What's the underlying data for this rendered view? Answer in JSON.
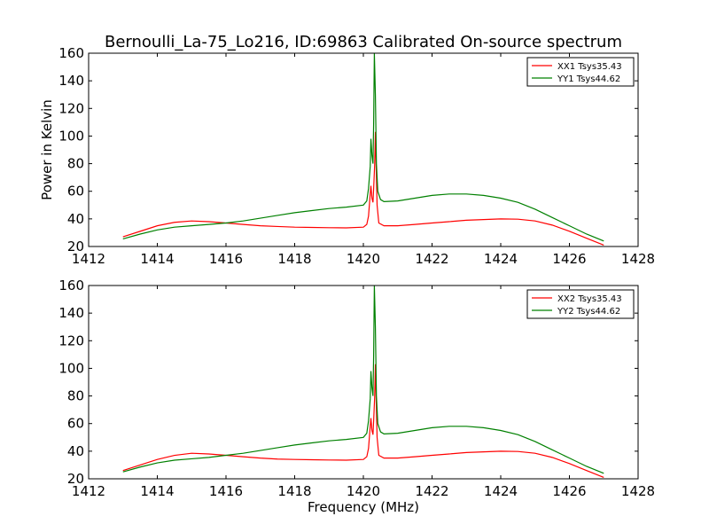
{
  "figure": {
    "title": "Bernoulli_La-75_Lo216, ID:69863 Calibrated On-source spectrum",
    "xlabel": "Frequency (MHz)",
    "ylabel": "Power in Kelvin"
  },
  "colors": {
    "red": "#ff0000",
    "green": "#008000"
  },
  "chart_data": [
    {
      "type": "line",
      "title": "Bernoulli_La-75_Lo216, ID:69863 Calibrated On-source spectrum",
      "xlabel": "",
      "ylabel": "Power in Kelvin",
      "xlim": [
        1412,
        1428
      ],
      "ylim": [
        20,
        160
      ],
      "xticks": [
        "1412",
        "1414",
        "1416",
        "1418",
        "1420",
        "1422",
        "1424",
        "1426",
        "1428"
      ],
      "yticks": [
        "20",
        "40",
        "60",
        "80",
        "100",
        "120",
        "140",
        "160"
      ],
      "legend_position": "top-right",
      "series": [
        {
          "name": "XX1 Tsys35.43",
          "color": "#ff0000",
          "x": [
            1413.0,
            1413.5,
            1414.0,
            1414.5,
            1415.0,
            1415.5,
            1416.0,
            1416.5,
            1417.0,
            1417.5,
            1418.0,
            1418.5,
            1419.0,
            1419.5,
            1420.0,
            1420.1,
            1420.15,
            1420.2,
            1420.22,
            1420.25,
            1420.28,
            1420.3,
            1420.33,
            1420.35,
            1420.38,
            1420.4,
            1420.45,
            1420.6,
            1421.0,
            1421.5,
            1422.0,
            1422.5,
            1423.0,
            1423.5,
            1424.0,
            1424.5,
            1425.0,
            1425.5,
            1426.0,
            1426.5,
            1427.0
          ],
          "y": [
            27,
            31,
            35,
            37.5,
            38.5,
            38,
            37,
            36,
            35,
            34.5,
            34,
            33.8,
            33.6,
            33.5,
            34,
            36,
            42,
            58,
            64,
            55,
            52,
            62,
            80,
            103,
            70,
            50,
            37,
            35,
            35,
            36,
            37,
            38,
            39,
            39.5,
            40,
            39.8,
            38.5,
            35.5,
            31,
            26,
            21
          ]
        },
        {
          "name": "YY1 Tsys44.62",
          "color": "#008000",
          "x": [
            1413.0,
            1413.5,
            1414.0,
            1414.5,
            1415.0,
            1415.5,
            1416.0,
            1416.5,
            1417.0,
            1417.5,
            1418.0,
            1418.5,
            1419.0,
            1419.5,
            1420.0,
            1420.1,
            1420.15,
            1420.2,
            1420.22,
            1420.25,
            1420.28,
            1420.3,
            1420.32,
            1420.35,
            1420.38,
            1420.42,
            1420.5,
            1420.6,
            1421.0,
            1421.5,
            1422.0,
            1422.5,
            1423.0,
            1423.5,
            1424.0,
            1424.5,
            1425.0,
            1425.5,
            1426.0,
            1426.5,
            1427.0
          ],
          "y": [
            25.5,
            29,
            32,
            34,
            35,
            36,
            37,
            38.5,
            40.5,
            42.5,
            44.5,
            46,
            47.5,
            48.5,
            50,
            53,
            62,
            78,
            98,
            86,
            80,
            110,
            160,
            130,
            80,
            60,
            54,
            52.5,
            53,
            55,
            57,
            58,
            58,
            57,
            55,
            52,
            47,
            41,
            35,
            29,
            24
          ]
        }
      ]
    },
    {
      "type": "line",
      "title": "",
      "xlabel": "Frequency (MHz)",
      "ylabel": "",
      "xlim": [
        1412,
        1428
      ],
      "ylim": [
        20,
        160
      ],
      "xticks": [
        "1412",
        "1414",
        "1416",
        "1418",
        "1420",
        "1422",
        "1424",
        "1426",
        "1428"
      ],
      "yticks": [
        "20",
        "40",
        "60",
        "80",
        "100",
        "120",
        "140",
        "160"
      ],
      "legend_position": "top-right",
      "series": [
        {
          "name": "XX2 Tsys35.43",
          "color": "#ff0000",
          "x": [
            1413.0,
            1413.5,
            1414.0,
            1414.5,
            1415.0,
            1415.5,
            1416.0,
            1416.5,
            1417.0,
            1417.5,
            1418.0,
            1418.5,
            1419.0,
            1419.5,
            1420.0,
            1420.1,
            1420.15,
            1420.2,
            1420.22,
            1420.25,
            1420.28,
            1420.3,
            1420.33,
            1420.35,
            1420.38,
            1420.4,
            1420.45,
            1420.6,
            1421.0,
            1421.5,
            1422.0,
            1422.5,
            1423.0,
            1423.5,
            1424.0,
            1424.5,
            1425.0,
            1425.5,
            1426.0,
            1426.5,
            1427.0
          ],
          "y": [
            26,
            30,
            34,
            37,
            38.5,
            38,
            37,
            36,
            35,
            34.3,
            34,
            33.8,
            33.6,
            33.5,
            34,
            36,
            42,
            58,
            64,
            55,
            52,
            62,
            80,
            103,
            70,
            50,
            37,
            35,
            35,
            36,
            37,
            38,
            39,
            39.5,
            40,
            39.8,
            38.5,
            35.5,
            31,
            26,
            21
          ]
        },
        {
          "name": "YY2 Tsys44.62",
          "color": "#008000",
          "x": [
            1413.0,
            1413.5,
            1414.0,
            1414.5,
            1415.0,
            1415.5,
            1416.0,
            1416.5,
            1417.0,
            1417.5,
            1418.0,
            1418.5,
            1419.0,
            1419.5,
            1420.0,
            1420.1,
            1420.15,
            1420.2,
            1420.22,
            1420.25,
            1420.28,
            1420.3,
            1420.32,
            1420.35,
            1420.38,
            1420.42,
            1420.5,
            1420.6,
            1421.0,
            1421.5,
            1422.0,
            1422.5,
            1423.0,
            1423.5,
            1424.0,
            1424.5,
            1425.0,
            1425.5,
            1426.0,
            1426.5,
            1427.0
          ],
          "y": [
            25,
            28.5,
            31.5,
            33.5,
            34.5,
            35.5,
            37,
            38.5,
            40.5,
            42.5,
            44.5,
            46,
            47.5,
            48.5,
            50,
            53,
            62,
            78,
            98,
            86,
            80,
            110,
            160,
            130,
            80,
            60,
            54,
            52.5,
            53,
            55,
            57,
            58,
            58,
            57,
            55,
            52,
            47,
            41,
            35,
            29,
            24
          ]
        }
      ]
    }
  ]
}
